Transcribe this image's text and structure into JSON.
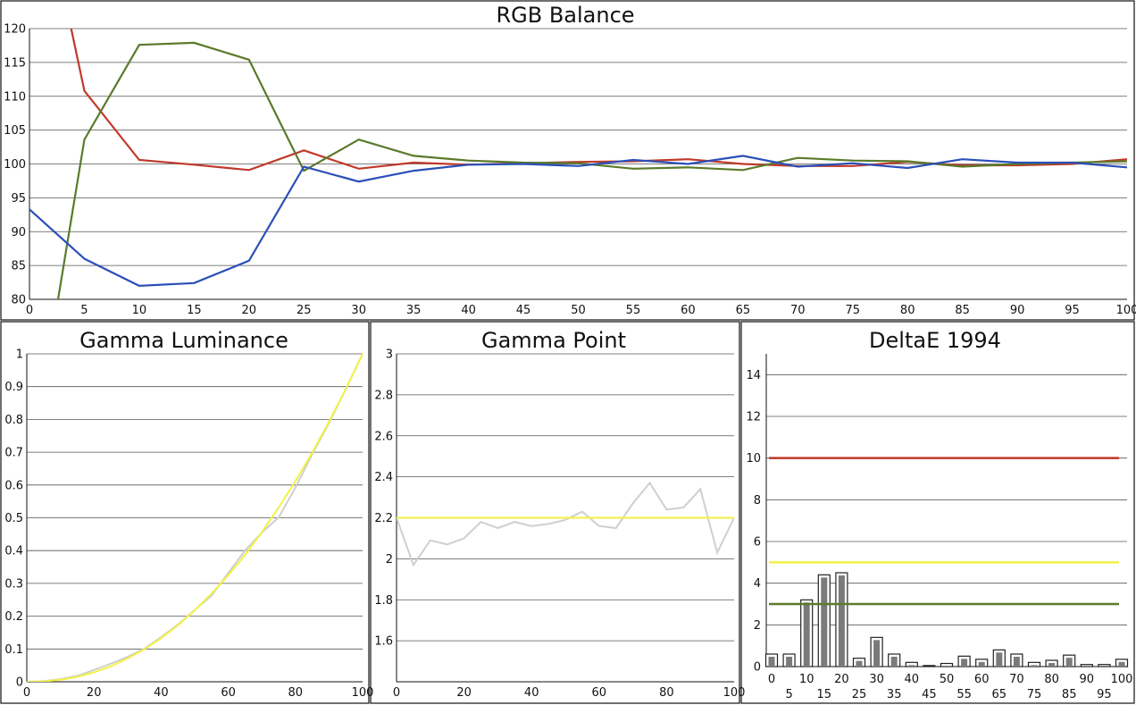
{
  "colors": {
    "red": "#c0392b",
    "green": "#5a7a2a",
    "blue": "#2a4fb8",
    "yellow": "#f2f244",
    "gray_line": "#cfcfcf",
    "bar_fill": "#7a7a7a"
  },
  "chart_data": [
    {
      "type": "line",
      "title": "RGB Balance",
      "xlim": [
        0,
        100
      ],
      "ylim": [
        80,
        120
      ],
      "xticks": [
        "0",
        "5",
        "10",
        "15",
        "20",
        "25",
        "30",
        "35",
        "40",
        "45",
        "50",
        "55",
        "60",
        "65",
        "70",
        "75",
        "80",
        "85",
        "90",
        "95",
        "100"
      ],
      "yticks": [
        "80",
        "85",
        "90",
        "95",
        "100",
        "105",
        "110",
        "115",
        "120"
      ],
      "series": [
        {
          "color": "red",
          "x": [
            3.8,
            5,
            10,
            15,
            20,
            25,
            30,
            35,
            40,
            45,
            50,
            55,
            60,
            65,
            70,
            75,
            80,
            85,
            90,
            95,
            100
          ],
          "y": [
            120,
            110.8,
            100.6,
            99.9,
            99.1,
            102.0,
            99.3,
            100.2,
            99.9,
            100.1,
            100.3,
            100.4,
            100.7,
            100.0,
            99.7,
            99.7,
            100.3,
            99.8,
            99.8,
            100.0,
            100.7
          ]
        },
        {
          "color": "green",
          "x": [
            2.6,
            5,
            10,
            15,
            20,
            25,
            30,
            35,
            40,
            45,
            50,
            55,
            60,
            65,
            70,
            75,
            80,
            85,
            90,
            95,
            100
          ],
          "y": [
            80,
            103.6,
            117.6,
            117.9,
            115.4,
            99.0,
            103.6,
            101.2,
            100.5,
            100.2,
            100.1,
            99.3,
            99.5,
            99.1,
            100.9,
            100.5,
            100.4,
            99.6,
            100.0,
            100.2,
            100.4
          ]
        },
        {
          "color": "blue",
          "x": [
            0,
            5,
            10,
            15,
            20,
            25,
            30,
            35,
            40,
            45,
            50,
            55,
            60,
            65,
            70,
            75,
            80,
            85,
            90,
            95,
            100
          ],
          "y": [
            93.3,
            86.0,
            82.0,
            82.4,
            85.7,
            99.6,
            97.4,
            99.0,
            99.9,
            100.0,
            99.7,
            100.6,
            100.0,
            101.2,
            99.6,
            100.1,
            99.4,
            100.7,
            100.2,
            100.2,
            99.5
          ]
        }
      ]
    },
    {
      "type": "line",
      "title": "Gamma Luminance",
      "xlim": [
        0,
        100
      ],
      "ylim": [
        0,
        1
      ],
      "xticks": [
        "0",
        "20",
        "40",
        "60",
        "80",
        "100"
      ],
      "yticks": [
        "0",
        "0.1",
        "0.2",
        "0.3",
        "0.4",
        "0.5",
        "0.6",
        "0.7",
        "0.8",
        "0.9",
        "1"
      ],
      "series": [
        {
          "color": "gray_line",
          "x": [
            0,
            5,
            10,
            15,
            20,
            25,
            30,
            35,
            40,
            45,
            50,
            55,
            60,
            65,
            70,
            75,
            80,
            85,
            90,
            95,
            100
          ],
          "y": [
            0,
            0.002,
            0.008,
            0.018,
            0.036,
            0.055,
            0.076,
            0.101,
            0.136,
            0.174,
            0.219,
            0.262,
            0.332,
            0.4,
            0.455,
            0.501,
            0.592,
            0.694,
            0.789,
            0.892,
            1
          ]
        },
        {
          "color": "yellow",
          "x": [
            0,
            5,
            10,
            15,
            20,
            25,
            30,
            35,
            40,
            45,
            50,
            55,
            60,
            65,
            70,
            75,
            80,
            85,
            90,
            95,
            100
          ],
          "y": [
            0,
            0.001,
            0.006,
            0.015,
            0.029,
            0.047,
            0.071,
            0.099,
            0.133,
            0.172,
            0.218,
            0.269,
            0.325,
            0.387,
            0.456,
            0.531,
            0.612,
            0.699,
            0.793,
            0.893,
            1
          ]
        }
      ]
    },
    {
      "type": "line",
      "title": "Gamma Point",
      "xlim": [
        0,
        100
      ],
      "ylim": [
        1.4,
        3
      ],
      "xticks": [
        "0",
        "20",
        "40",
        "60",
        "80",
        "100"
      ],
      "yticks": [
        "1.6",
        "1.8",
        "2",
        "2.2",
        "2.4",
        "2.6",
        "2.8",
        "3"
      ],
      "series": [
        {
          "color": "gray_line",
          "x": [
            0,
            5,
            10,
            15,
            20,
            25,
            30,
            35,
            40,
            45,
            50,
            55,
            60,
            65,
            70,
            75,
            80,
            85,
            90,
            95,
            100
          ],
          "y": [
            2.2,
            1.97,
            2.09,
            2.07,
            2.1,
            2.18,
            2.15,
            2.18,
            2.16,
            2.17,
            2.19,
            2.23,
            2.16,
            2.15,
            2.27,
            2.37,
            2.24,
            2.25,
            2.34,
            2.03,
            2.2
          ]
        },
        {
          "color": "yellow",
          "x": [
            0,
            100
          ],
          "y": [
            2.2,
            2.2
          ]
        }
      ]
    },
    {
      "type": "bar",
      "title": "DeltaE 1994",
      "xlim": [
        0,
        100
      ],
      "ylim": [
        0,
        15
      ],
      "xticks_top": [
        "0",
        "10",
        "20",
        "30",
        "40",
        "50",
        "60",
        "70",
        "80",
        "90",
        "100"
      ],
      "xticks_bottom": [
        "5",
        "15",
        "25",
        "35",
        "45",
        "55",
        "65",
        "75",
        "85",
        "95"
      ],
      "yticks": [
        "0",
        "2",
        "4",
        "6",
        "8",
        "10",
        "12",
        "14"
      ],
      "categories": [
        0,
        5,
        10,
        15,
        20,
        25,
        30,
        35,
        40,
        45,
        50,
        55,
        60,
        65,
        70,
        75,
        80,
        85,
        90,
        95,
        100
      ],
      "values": [
        0.6,
        0.6,
        3.2,
        4.4,
        4.5,
        0.4,
        1.4,
        0.6,
        0.2,
        0.05,
        0.15,
        0.5,
        0.35,
        0.8,
        0.6,
        0.2,
        0.3,
        0.55,
        0.1,
        0.1,
        0.35
      ],
      "thresholds": [
        {
          "color": "red",
          "value": 10
        },
        {
          "color": "yellow",
          "value": 5
        },
        {
          "color": "green",
          "value": 3
        }
      ]
    }
  ]
}
